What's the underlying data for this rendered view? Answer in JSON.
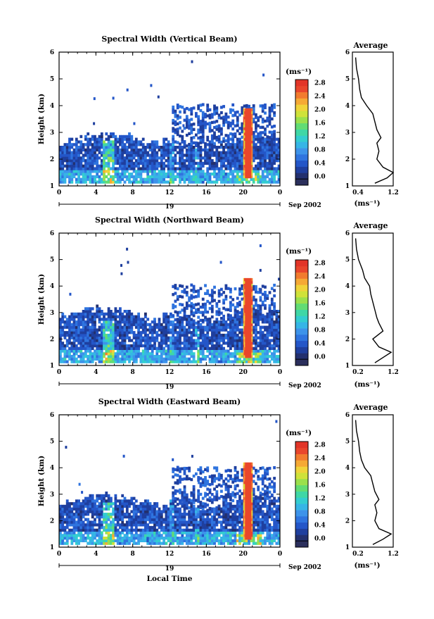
{
  "colorbar_levels": [
    "#2b2f5c",
    "#23306e",
    "#1f3f9e",
    "#2456c8",
    "#2f74df",
    "#3d93ea",
    "#36b5e6",
    "#33cdd0",
    "#3fd7a6",
    "#62dc74",
    "#9be04c",
    "#cfe23a",
    "#f0d33a",
    "#f5a935",
    "#f27b2e",
    "#e9462c",
    "#e23528"
  ],
  "colorbar_ticks": [
    "2.8",
    "2.4",
    "2.0",
    "1.6",
    "1.2",
    "0.8",
    "0.4",
    "0.0"
  ],
  "colorbar_unit": "(ms⁻¹)",
  "profile_unit": "(ms⁻¹)",
  "x_ticks": [
    "0",
    "4",
    "8",
    "12",
    "16",
    "20",
    "0"
  ],
  "y_ticks": [
    "1",
    "2",
    "3",
    "4",
    "5",
    "6"
  ],
  "day_label": "19",
  "date_label": "Sep 2002",
  "ylabel": "Height (km)",
  "xlabel": "Local Time",
  "profile_title": "Average",
  "chart_data": [
    {
      "type": "heatmap",
      "title": "Spectral Width (Vertical Beam)",
      "xlabel": "",
      "ylabel": "Height (km)",
      "xlim": [
        0,
        24
      ],
      "ylim": [
        1,
        6
      ],
      "colorbar_range": [
        0,
        3.0
      ],
      "features": [
        {
          "from_h": 0,
          "to_h": 24,
          "base_km": 1.1,
          "top_km": 2.4,
          "mean_width": 0.6
        },
        {
          "from_h": 20,
          "to_h": 21,
          "base_km": 1.3,
          "top_km": 3.9,
          "mean_width": 2.9
        }
      ],
      "profile": {
        "title": "Average",
        "xlim": [
          0.2,
          1.2
        ],
        "xticks": [
          "0.4",
          "1.2"
        ],
        "heights": [
          1.1,
          1.3,
          1.5,
          1.7,
          2.0,
          2.3,
          2.6,
          2.8,
          3.1,
          3.4,
          3.7,
          4.0,
          4.3,
          4.6,
          5.0,
          5.4,
          5.8
        ],
        "values": [
          0.75,
          1.05,
          1.2,
          0.95,
          0.8,
          0.85,
          0.8,
          0.9,
          0.8,
          0.75,
          0.7,
          0.55,
          0.42,
          0.38,
          0.35,
          0.3,
          0.28
        ]
      }
    },
    {
      "type": "heatmap",
      "title": "Spectral Width (Northward Beam)",
      "xlabel": "",
      "ylabel": "Height (km)",
      "xlim": [
        0,
        24
      ],
      "ylim": [
        1,
        6
      ],
      "colorbar_range": [
        0,
        3.0
      ],
      "features": [
        {
          "from_h": 0,
          "to_h": 24,
          "base_km": 1.1,
          "top_km": 2.6,
          "mean_width": 0.6
        },
        {
          "from_h": 20,
          "to_h": 21,
          "base_km": 1.3,
          "top_km": 4.3,
          "mean_width": 2.9
        }
      ],
      "profile": {
        "title": "Average",
        "xlim": [
          0.2,
          1.2
        ],
        "xticks": [
          "0.2",
          "1.2"
        ],
        "heights": [
          1.1,
          1.3,
          1.5,
          1.7,
          2.0,
          2.3,
          2.6,
          2.8,
          3.1,
          3.4,
          3.7,
          4.0,
          4.3,
          4.6,
          5.0,
          5.4,
          5.8
        ],
        "values": [
          0.75,
          0.95,
          1.15,
          0.85,
          0.7,
          0.95,
          0.85,
          0.8,
          0.75,
          0.7,
          0.65,
          0.62,
          0.5,
          0.45,
          0.35,
          0.3,
          0.28
        ]
      }
    },
    {
      "type": "heatmap",
      "title": "Spectral Width (Eastward Beam)",
      "xlabel": "Local Time",
      "ylabel": "Height (km)",
      "xlim": [
        0,
        24
      ],
      "ylim": [
        1,
        6
      ],
      "colorbar_range": [
        0,
        3.0
      ],
      "features": [
        {
          "from_h": 0,
          "to_h": 24,
          "base_km": 1.1,
          "top_km": 2.4,
          "mean_width": 0.6
        },
        {
          "from_h": 20,
          "to_h": 21,
          "base_km": 1.3,
          "top_km": 4.2,
          "mean_width": 2.9
        }
      ],
      "profile": {
        "title": "Average",
        "xlim": [
          0.2,
          1.2
        ],
        "xticks": [
          "0.2",
          "1.2"
        ],
        "heights": [
          1.1,
          1.3,
          1.5,
          1.7,
          2.0,
          2.3,
          2.6,
          2.8,
          3.1,
          3.4,
          3.7,
          4.0,
          4.3,
          4.6,
          5.0,
          5.4,
          5.8
        ],
        "values": [
          0.7,
          0.95,
          1.15,
          0.85,
          0.75,
          0.8,
          0.75,
          0.85,
          0.75,
          0.7,
          0.65,
          0.5,
          0.42,
          0.38,
          0.35,
          0.3,
          0.28
        ]
      }
    }
  ]
}
